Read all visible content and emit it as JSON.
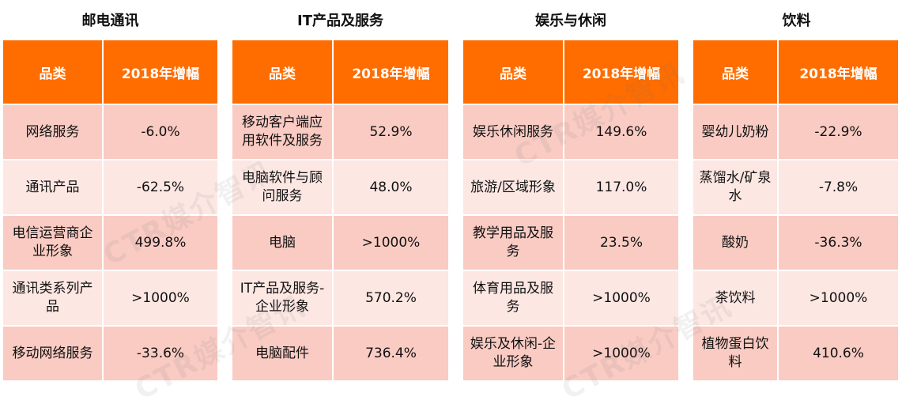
{
  "watermark_text": "CTR媒介智讯",
  "colors": {
    "header_bg": "#ff6d00",
    "row_dark": "#f9cbc3",
    "row_light": "#fce7e3"
  },
  "panels": [
    {
      "title": "邮电通讯",
      "col1": "品类",
      "col2": "2018年增幅",
      "rows": [
        {
          "category": "网络服务",
          "growth": "-6.0%"
        },
        {
          "category": "通讯产品",
          "growth": "-62.5%"
        },
        {
          "category": "电信运营商企业形象",
          "growth": "499.8%"
        },
        {
          "category": "通讯类系列产品",
          "growth": ">1000%"
        },
        {
          "category": "移动网络服务",
          "growth": "-33.6%"
        }
      ]
    },
    {
      "title": "IT产品及服务",
      "col1": "品类",
      "col2": "2018年增幅",
      "rows": [
        {
          "category": "移动客户端应用软件及服务",
          "growth": "52.9%"
        },
        {
          "category": "电脑软件与顾问服务",
          "growth": "48.0%"
        },
        {
          "category": "电脑",
          "growth": ">1000%"
        },
        {
          "category": "IT产品及服务-企业形象",
          "growth": "570.2%"
        },
        {
          "category": "电脑配件",
          "growth": "736.4%"
        }
      ]
    },
    {
      "title": "娱乐与休闲",
      "col1": "品类",
      "col2": "2018年增幅",
      "rows": [
        {
          "category": "娱乐休闲服务",
          "growth": "149.6%"
        },
        {
          "category": "旅游/区域形象",
          "growth": "117.0%"
        },
        {
          "category": "教学用品及服务",
          "growth": "23.5%"
        },
        {
          "category": "体育用品及服务",
          "growth": ">1000%"
        },
        {
          "category": "娱乐及休闲-企业形象",
          "growth": ">1000%"
        }
      ]
    },
    {
      "title": "饮料",
      "col1": "品类",
      "col2": "2018年增幅",
      "rows": [
        {
          "category": "婴幼儿奶粉",
          "growth": "-22.9%"
        },
        {
          "category": "蒸馏水/矿泉水",
          "growth": "-7.8%"
        },
        {
          "category": "酸奶",
          "growth": "-36.3%"
        },
        {
          "category": "茶饮料",
          "growth": ">1000%"
        },
        {
          "category": "植物蛋白饮料",
          "growth": "410.6%"
        }
      ]
    }
  ]
}
